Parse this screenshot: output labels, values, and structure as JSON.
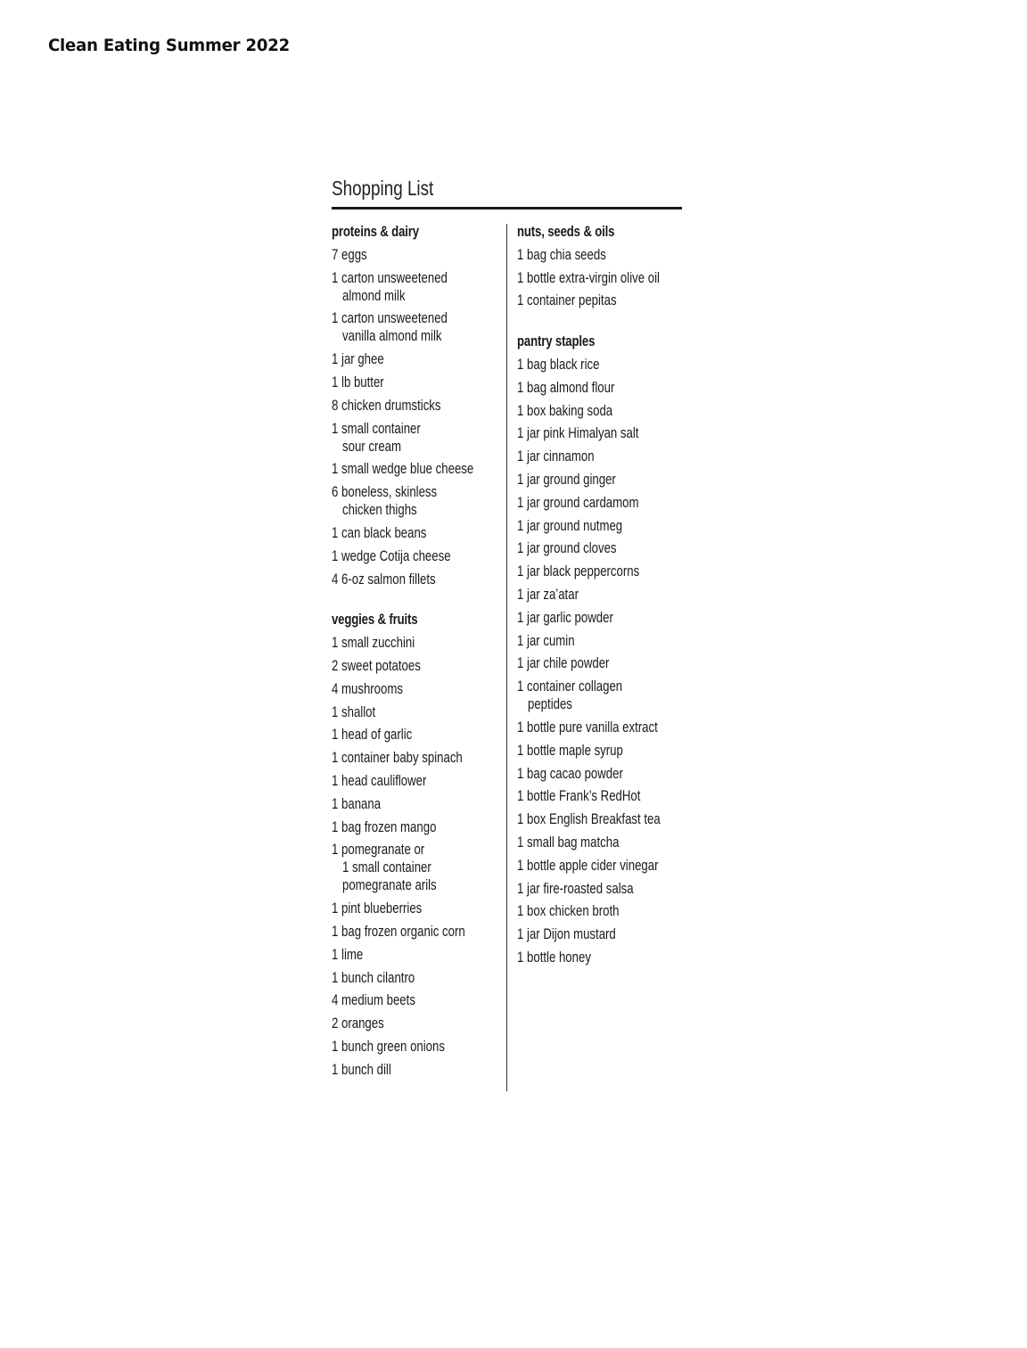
{
  "publication": "Clean Eating Summer 2022",
  "title": "Shopping List",
  "left_sections": [
    {
      "heading": "proteins & dairy",
      "items": [
        "7 eggs",
        "1 carton unsweetened\nalmond milk",
        "1 carton unsweetened\nvanilla almond milk",
        "1 jar ghee",
        "1 lb butter",
        "8 chicken drumsticks",
        "1 small container\nsour cream",
        "1 small wedge blue cheese",
        "6 boneless, skinless\nchicken thighs",
        "1 can black beans",
        "1 wedge Cotija cheese",
        "4 6-oz salmon fillets"
      ]
    },
    {
      "heading": "veggies & fruits",
      "items": [
        "1 small zucchini",
        "2 sweet potatoes",
        "4 mushrooms",
        "1 shallot",
        "1 head of garlic",
        "1 container baby spinach",
        "1 head cauliflower",
        "1 banana",
        "1 bag frozen mango",
        "1 pomegranate or\n1 small container\npomegranate arils",
        "1 pint blueberries",
        "1 bag frozen organic corn",
        "1 lime",
        "1 bunch cilantro",
        "4 medium beets",
        "2 oranges",
        "1 bunch green onions",
        "1 bunch dill"
      ]
    }
  ],
  "right_sections": [
    {
      "heading": "nuts, seeds & oils",
      "items": [
        "1 bag chia seeds",
        "1 bottle extra-virgin olive oil",
        "1 container pepitas"
      ]
    },
    {
      "heading": "pantry staples",
      "items": [
        "1 bag black rice",
        "1 bag almond flour",
        "1 box baking soda",
        "1 jar pink Himalyan salt",
        "1 jar cinnamon",
        "1 jar ground ginger",
        "1 jar ground cardamom",
        "1 jar ground nutmeg",
        "1 jar ground cloves",
        "1 jar black peppercorns",
        "1 jar za’atar",
        "1 jar garlic powder",
        "1 jar cumin",
        "1 jar chile powder",
        "1 container collagen\npeptides",
        "1 bottle pure vanilla extract",
        "1 bottle maple syrup",
        "1 bag cacao powder",
        "1 bottle Frank’s RedHot",
        "1 box English Breakfast tea",
        "1 small bag matcha",
        "1 bottle apple cider vinegar",
        "1 jar fire-roasted salsa",
        "1 box chicken broth",
        "1 jar Dijon mustard",
        "1 bottle honey"
      ]
    }
  ]
}
